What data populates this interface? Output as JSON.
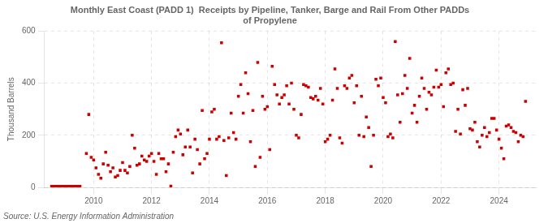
{
  "chart_data": {
    "type": "scatter",
    "title": [
      "Monthly East Coast (PADD 1)  Receipts by Pipeline, Tanker, Barge and Rail From Other PADDs",
      "of Propylene"
    ],
    "ylabel": "Thousand Barrels",
    "source": "Source: U.S. Energy Information Administration",
    "xlim": [
      2008.3,
      2025.3
    ],
    "xticks": [
      2010,
      2012,
      2014,
      2016,
      2018,
      2020,
      2022,
      2024
    ],
    "ylim": [
      0,
      600
    ],
    "yticks": [
      0,
      200,
      400,
      600
    ],
    "grid": true,
    "series": [
      {
        "type": "line",
        "color": "#cc0000",
        "x": [
          2008.5,
          2009.58
        ],
        "values": [
          3,
          3
        ]
      },
      {
        "type": "scatter",
        "color": "#cc0000",
        "marker": "square",
        "x": [
          2009.75,
          2009.833,
          2009.917,
          2010.0,
          2010.083,
          2010.167,
          2010.25,
          2010.333,
          2010.417,
          2010.5,
          2010.583,
          2010.667,
          2010.75,
          2010.833,
          2010.917,
          2011.0,
          2011.083,
          2011.167,
          2011.25,
          2011.333,
          2011.417,
          2011.5,
          2011.583,
          2011.667,
          2011.75,
          2011.833,
          2011.917,
          2012.0,
          2012.083,
          2012.167,
          2012.25,
          2012.333,
          2012.417,
          2012.5,
          2012.583,
          2012.667,
          2012.75,
          2012.833,
          2012.917,
          2013.0,
          2013.083,
          2013.167,
          2013.25,
          2013.333,
          2013.417,
          2013.5,
          2013.583,
          2013.667,
          2013.75,
          2013.833,
          2013.917,
          2014.0,
          2014.083,
          2014.167,
          2014.25,
          2014.333,
          2014.417,
          2014.5,
          2014.583,
          2014.667,
          2014.75,
          2014.833,
          2014.917,
          2015.0,
          2015.083,
          2015.167,
          2015.25,
          2015.333,
          2015.417,
          2015.5,
          2015.583,
          2015.667,
          2015.75,
          2015.833,
          2015.917,
          2016.0,
          2016.083,
          2016.167,
          2016.25,
          2016.333,
          2016.417,
          2016.5,
          2016.583,
          2016.667,
          2016.75,
          2016.833,
          2016.917,
          2017.0,
          2017.083,
          2017.167,
          2017.25,
          2017.333,
          2017.417,
          2017.5,
          2017.583,
          2017.667,
          2017.75,
          2017.833,
          2017.917,
          2018.0,
          2018.083,
          2018.167,
          2018.25,
          2018.333,
          2018.417,
          2018.5,
          2018.583,
          2018.667,
          2018.75,
          2018.833,
          2018.917,
          2019.0,
          2019.083,
          2019.167,
          2019.25,
          2019.333,
          2019.417,
          2019.5,
          2019.583,
          2019.667,
          2019.75,
          2019.833,
          2019.917,
          2020.0,
          2020.083,
          2020.167,
          2020.25,
          2020.333,
          2020.417,
          2020.5,
          2020.583,
          2020.667,
          2020.75,
          2020.833,
          2020.917,
          2021.0,
          2021.083,
          2021.167,
          2021.25,
          2021.333,
          2021.417,
          2021.5,
          2021.583,
          2021.667,
          2021.75,
          2021.833,
          2021.917,
          2022.0,
          2022.083,
          2022.167,
          2022.25,
          2022.333,
          2022.417,
          2022.5,
          2022.583,
          2022.667,
          2022.75,
          2022.833,
          2022.917,
          2023.0,
          2023.083,
          2023.167,
          2023.25,
          2023.333,
          2023.417,
          2023.5,
          2023.583,
          2023.667,
          2023.75,
          2023.833,
          2023.917,
          2024.0,
          2024.083,
          2024.167,
          2024.25,
          2024.333,
          2024.417,
          2024.5,
          2024.583,
          2024.667,
          2024.75,
          2024.833,
          2024.917
        ],
        "values": [
          130,
          280,
          115,
          105,
          75,
          50,
          35,
          90,
          135,
          85,
          60,
          75,
          40,
          45,
          65,
          95,
          65,
          55,
          80,
          200,
          150,
          85,
          90,
          120,
          105,
          100,
          120,
          130,
          100,
          50,
          130,
          110,
          110,
          60,
          90,
          5,
          135,
          195,
          220,
          205,
          125,
          155,
          220,
          155,
          55,
          185,
          145,
          90,
          295,
          110,
          130,
          185,
          290,
          300,
          185,
          195,
          555,
          180,
          45,
          190,
          285,
          210,
          185,
          350,
          395,
          285,
          440,
          360,
          175,
          295,
          80,
          480,
          115,
          350,
          300,
          310,
          145,
          465,
          395,
          355,
          320,
          345,
          355,
          390,
          320,
          400,
          300,
          200,
          190,
          280,
          395,
          390,
          385,
          345,
          340,
          350,
          335,
          380,
          320,
          175,
          185,
          200,
          335,
          455,
          380,
          190,
          170,
          390,
          380,
          420,
          430,
          325,
          390,
          200,
          350,
          195,
          270,
          230,
          80,
          200,
          415,
          390,
          420,
          345,
          325,
          195,
          205,
          190,
          560,
          355,
          250,
          360,
          430,
          380,
          495,
          285,
          315,
          250,
          350,
          420,
          380,
          300,
          365,
          355,
          385,
          450,
          385,
          395,
          310,
          440,
          455,
          395,
          400,
          215,
          300,
          205,
          375,
          315,
          380,
          225,
          220,
          250,
          175,
          155,
          200,
          230,
          195,
          210,
          265,
          265,
          220,
          185,
          150,
          110,
          235,
          240,
          230,
          215,
          210,
          175,
          200,
          195,
          330
        ]
      }
    ]
  }
}
